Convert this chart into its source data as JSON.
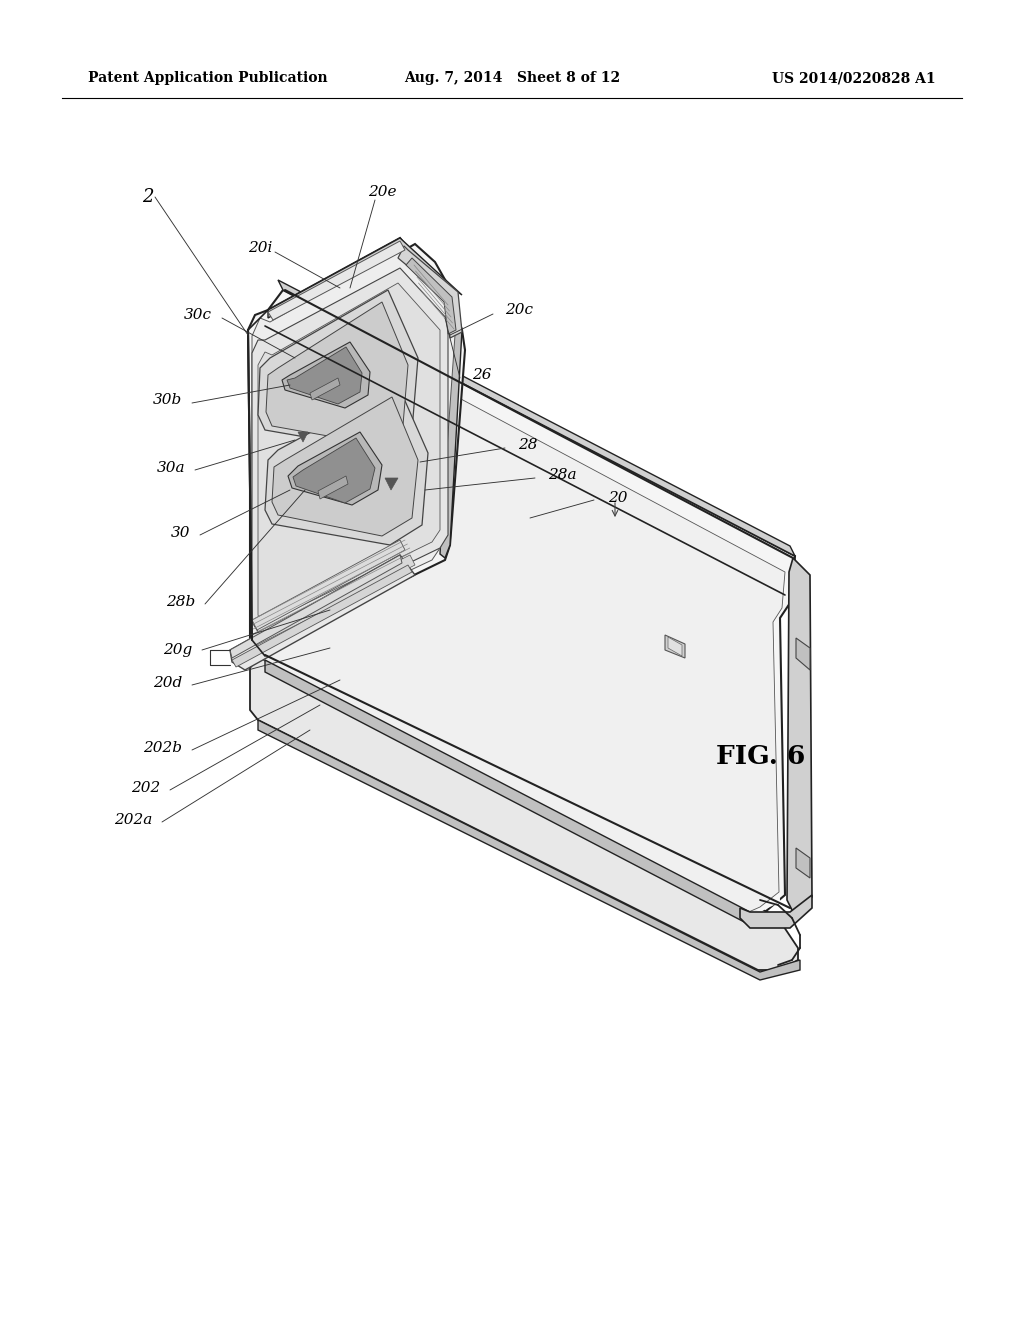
{
  "bg_color": "#ffffff",
  "header_left": "Patent Application Publication",
  "header_center": "Aug. 7, 2014   Sheet 8 of 12",
  "header_right": "US 2014/0220828 A1",
  "fig_label": "FIG. 6",
  "line_color": "#222222",
  "body_color": "#f5f5f5",
  "face_color": "#ececec",
  "edge_color": "#d0d0d0",
  "dark_color": "#c0c0c0",
  "port_color": "#d8d8d8",
  "port_inner": "#b0b0b0",
  "port_dark": "#808080"
}
